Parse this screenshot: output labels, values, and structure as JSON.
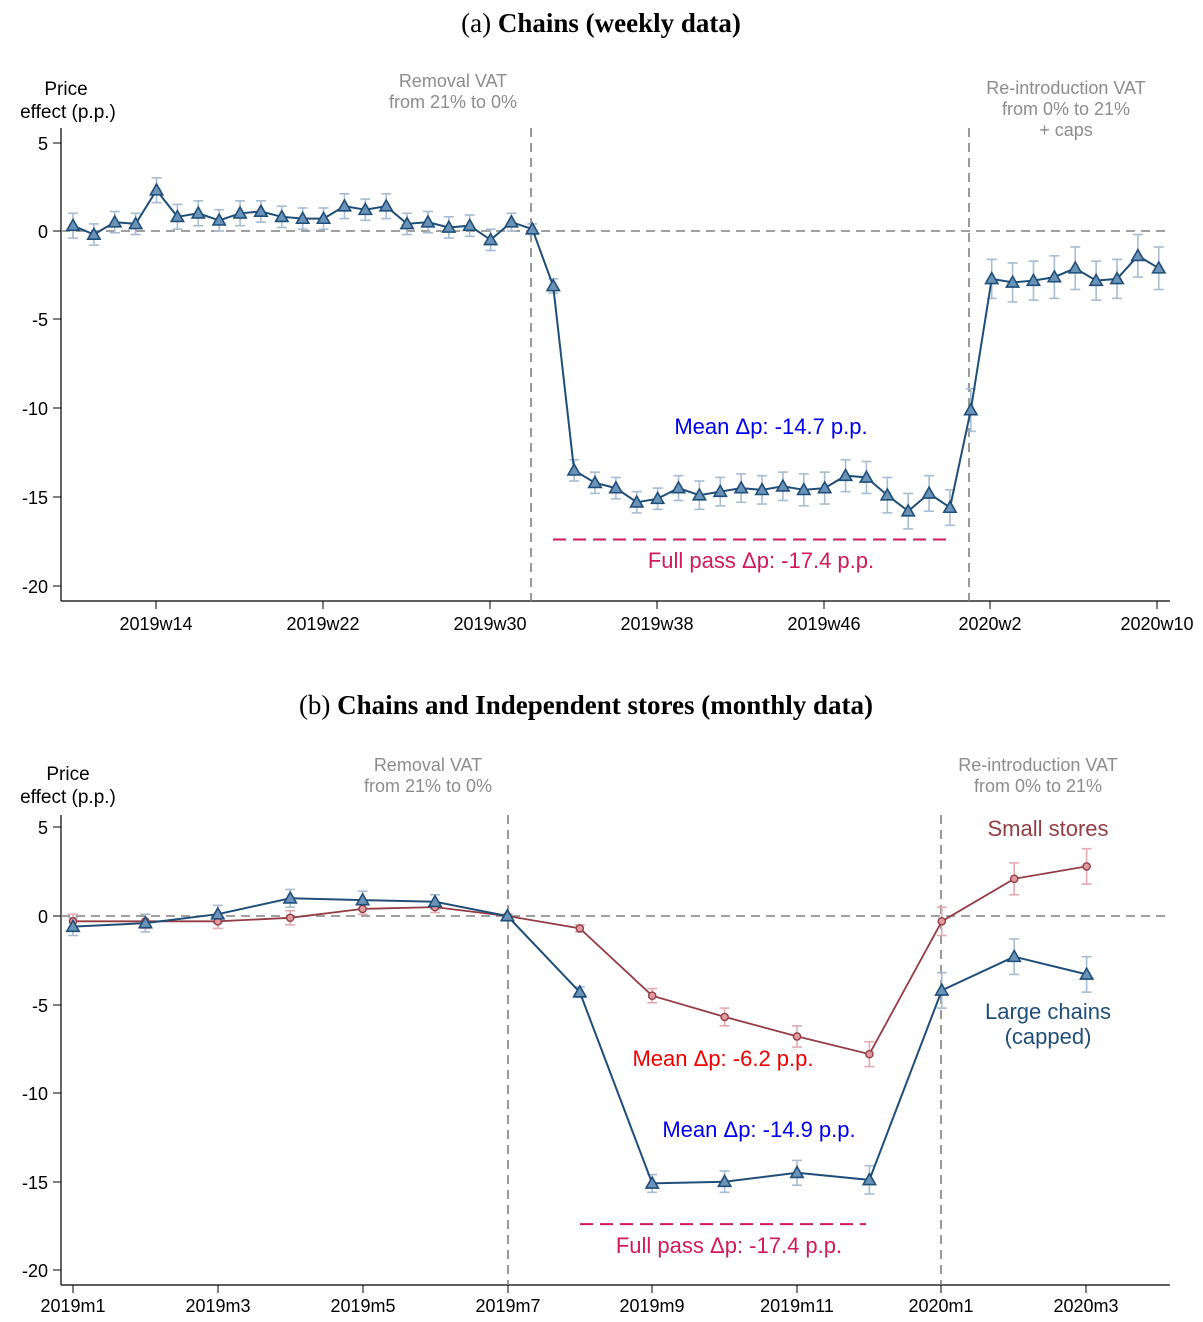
{
  "colors": {
    "chains": "#1f4e79",
    "chains_fill": "#6b93b8",
    "chains_ci": "#a7bcd1",
    "small": "#943d45",
    "small_fill": "#e09aa0",
    "small_ci": "#e3aab0",
    "mean_blue": "#0000ee",
    "mean_red": "#ee0000",
    "pass": "#d11a5a",
    "gray": "#8c8c8c",
    "zero": "#808080"
  },
  "chart_data": [
    {
      "type": "line",
      "title_prefix": "(a)",
      "title": "Chains (weekly data)",
      "ylabel": [
        "Price",
        "effect (p.p.)"
      ],
      "ylim": [
        -21,
        5.6
      ],
      "yticks": [
        5,
        0,
        -5,
        -10,
        -15,
        -20
      ],
      "yticklabels": [
        "5",
        "0",
        "-5",
        "-10",
        "-15",
        "-20"
      ],
      "xticks": [
        "2019w14",
        "2019w22",
        "2019w30",
        "2019w38",
        "2019w46",
        "2020w2",
        "2020w10"
      ],
      "xtick_index": [
        3,
        11,
        19,
        27,
        35,
        44,
        52
      ],
      "vlines_index": [
        21,
        43
      ],
      "annotations": [
        [
          "Removal VAT",
          "from 21% to 0%"
        ],
        [
          "Re-introduction VAT",
          "from 0% to 21%",
          "+ caps"
        ]
      ],
      "mean_label": "Mean Δp: -14.7 p.p.",
      "pass_label": "Full pass Δp: -17.4 p.p.",
      "pass_value": -17.4,
      "pass_range_index": [
        23,
        42
      ],
      "series": [
        {
          "key": "chains",
          "x_index": [
            0,
            1,
            2,
            3,
            4,
            5,
            6,
            7,
            8,
            9,
            10,
            11,
            12,
            13,
            14,
            15,
            16,
            17,
            18,
            19,
            20,
            21,
            22,
            23,
            24,
            25,
            26,
            27,
            28,
            29,
            30,
            31,
            32,
            33,
            34,
            35,
            36,
            37,
            38,
            39,
            40,
            41,
            42,
            43,
            44,
            45,
            46,
            47,
            48,
            49,
            50,
            51,
            52
          ],
          "values": [
            0.3,
            -0.2,
            0.5,
            0.4,
            2.3,
            0.8,
            1.0,
            0.6,
            1.0,
            1.1,
            0.8,
            0.7,
            0.7,
            1.4,
            1.2,
            1.4,
            0.4,
            0.5,
            0.2,
            0.3,
            -0.5,
            0.5,
            0.1,
            -3.1,
            -13.5,
            -14.2,
            -14.5,
            -15.3,
            -15.1,
            -14.5,
            -14.9,
            -14.7,
            -14.5,
            -14.6,
            -14.4,
            -14.6,
            -14.5,
            -13.8,
            -13.9,
            -14.9,
            -15.8,
            -14.8,
            -15.6,
            -10.1,
            -2.7,
            -2.9,
            -2.8,
            -2.6,
            -2.1,
            -2.8,
            -2.7,
            -1.4,
            -2.1
          ],
          "ci": [
            0.7,
            0.6,
            0.6,
            0.6,
            0.7,
            0.7,
            0.7,
            0.6,
            0.7,
            0.6,
            0.6,
            0.6,
            0.6,
            0.7,
            0.6,
            0.7,
            0.6,
            0.6,
            0.6,
            0.6,
            0.6,
            0.5,
            0.3,
            0.4,
            0.6,
            0.6,
            0.6,
            0.6,
            0.6,
            0.7,
            0.8,
            0.8,
            0.8,
            0.8,
            0.8,
            0.9,
            0.9,
            0.9,
            0.9,
            1.0,
            1.0,
            1.0,
            1.0,
            1.2,
            1.1,
            1.1,
            1.1,
            1.2,
            1.2,
            1.1,
            1.1,
            1.2,
            1.2
          ]
        }
      ]
    },
    {
      "type": "line",
      "title_prefix": "(b)",
      "title": "Chains and Independent stores (monthly data)",
      "ylabel": [
        "Price",
        "effect (p.p.)"
      ],
      "ylim": [
        -21,
        5.6
      ],
      "yticks": [
        5,
        0,
        -5,
        -10,
        -15,
        -20
      ],
      "yticklabels": [
        "5",
        "0",
        "-5",
        "-10",
        "-15",
        "-20"
      ],
      "xticks": [
        "2019m1",
        "2019m3",
        "2019m5",
        "2019m7",
        "2019m9",
        "2019m11",
        "2020m1",
        "2020m3"
      ],
      "xtick_index": [
        0,
        2,
        4,
        6,
        8,
        10,
        12,
        14
      ],
      "vlines_index": [
        6,
        12
      ],
      "annotations": [
        [
          "Removal VAT",
          "from 21% to 0%"
        ],
        [
          "Re-introduction VAT",
          "from 0% to 21%"
        ]
      ],
      "mean_small_label": "Mean Δp: -6.2 p.p.",
      "mean_chains_label": "Mean Δp: -14.9 p.p.",
      "pass_label": "Full pass Δp: -17.4 p.p.",
      "pass_value": -17.4,
      "pass_range_index": [
        7,
        11
      ],
      "small_label": "Small stores",
      "chains_label": [
        "Large chains",
        "(capped)"
      ],
      "series": [
        {
          "key": "small",
          "name": "Small stores",
          "x_index": [
            0,
            1,
            2,
            3,
            4,
            5,
            6,
            7,
            8,
            9,
            10,
            11,
            12,
            13,
            14
          ],
          "values": [
            -0.3,
            -0.3,
            -0.3,
            -0.1,
            0.4,
            0.5,
            0.0,
            -0.7,
            -4.5,
            -5.7,
            -6.8,
            -7.8,
            -0.3,
            2.1,
            2.8
          ],
          "ci": [
            0.4,
            0.4,
            0.4,
            0.4,
            0.3,
            0.3,
            0.1,
            0.2,
            0.4,
            0.5,
            0.6,
            0.7,
            0.8,
            0.9,
            1.0
          ]
        },
        {
          "key": "chains",
          "name": "Large chains (capped)",
          "x_index": [
            0,
            1,
            2,
            3,
            4,
            5,
            6,
            7,
            8,
            9,
            10,
            11,
            12,
            13,
            14
          ],
          "values": [
            -0.6,
            -0.4,
            0.1,
            1.0,
            0.9,
            0.8,
            0.0,
            -4.3,
            -15.1,
            -15.0,
            -14.5,
            -14.9,
            -4.2,
            -2.3,
            -3.3
          ],
          "ci": [
            0.5,
            0.5,
            0.5,
            0.5,
            0.5,
            0.4,
            0.1,
            0.3,
            0.5,
            0.6,
            0.7,
            0.8,
            1.0,
            1.0,
            1.0
          ]
        }
      ]
    }
  ]
}
